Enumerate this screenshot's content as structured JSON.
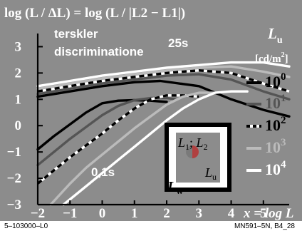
{
  "footer": {
    "left": "5–103000–L0",
    "right": "MN591–5N, B4_28"
  },
  "chart_data": {
    "type": "line",
    "title": "log (L / ΔL) = log (L / |L2 − L1|)",
    "annotation_lines": [
      "terskler",
      "discriminatione"
    ],
    "time_labels": [
      "25s",
      "0,1s"
    ],
    "x_axis_label": "x = log L",
    "xlim": [
      -2,
      5.8
    ],
    "ylim": [
      -3,
      3.5
    ],
    "x_ticks": [
      -2,
      -1,
      0,
      1,
      2,
      3,
      4,
      5
    ],
    "y_ticks": [
      -3,
      -2,
      -1,
      0,
      1,
      2,
      3
    ],
    "legend": {
      "title": "L",
      "title_sub": "u",
      "unit": "[cd/m",
      "unit_sup": "2",
      "unit_end": "]",
      "entries": [
        {
          "base": "10",
          "exp": "0",
          "color": "#000000",
          "dashed": false
        },
        {
          "base": "10",
          "exp": "1",
          "color": "#555555",
          "dashed": false
        },
        {
          "base": "10",
          "exp": "2",
          "color": "#000000",
          "dashed": true
        },
        {
          "base": "10",
          "exp": "3",
          "color": "#bbbbbb",
          "dashed": false
        },
        {
          "base": "10",
          "exp": "4",
          "color": "#ffffff",
          "dashed": false
        }
      ]
    },
    "inset": {
      "label_center": "L1; L2",
      "label_u": "Lu",
      "label_w": "Lw"
    },
    "series": [
      {
        "group": "25s",
        "color": "#000000",
        "dashed": false,
        "x": [
          -2,
          -1,
          0,
          1,
          1.8,
          3,
          4,
          5,
          5.8
        ],
        "y": [
          1.1,
          1.3,
          1.5,
          1.65,
          1.7,
          1.5,
          1.0,
          0.6,
          0.35
        ]
      },
      {
        "group": "25s",
        "color": "#555555",
        "dashed": false,
        "x": [
          -2,
          -1,
          0,
          1,
          2,
          3,
          4,
          5,
          5.8
        ],
        "y": [
          1.2,
          1.4,
          1.6,
          1.75,
          1.9,
          1.95,
          1.75,
          1.3,
          1.0
        ]
      },
      {
        "group": "25s",
        "color": "#000000",
        "dashed": true,
        "x": [
          -2,
          -1,
          0,
          1,
          2,
          3,
          4,
          5,
          5.8
        ],
        "y": [
          1.3,
          1.5,
          1.7,
          1.85,
          2.0,
          2.1,
          2.0,
          1.6,
          1.3
        ]
      },
      {
        "group": "25s",
        "color": "#bbbbbb",
        "dashed": false,
        "x": [
          -2,
          -1,
          0,
          1,
          2,
          3,
          4,
          5,
          5.8
        ],
        "y": [
          1.4,
          1.6,
          1.8,
          1.95,
          2.1,
          2.2,
          2.25,
          2.05,
          1.85
        ]
      },
      {
        "group": "25s",
        "color": "#ffffff",
        "dashed": false,
        "x": [
          -2,
          -1,
          0,
          1,
          2,
          3,
          4,
          5,
          5.8
        ],
        "y": [
          1.5,
          1.7,
          1.9,
          2.05,
          2.2,
          2.3,
          2.4,
          2.4,
          2.25
        ]
      },
      {
        "group": "0,1s",
        "color": "#000000",
        "dashed": false,
        "x": [
          -2,
          -1.5,
          -1,
          -0.5,
          0,
          0.5,
          1,
          1.5,
          2
        ],
        "y": [
          -0.9,
          -0.4,
          0.05,
          0.5,
          0.85,
          0.95,
          0.97,
          0.95,
          0.9
        ]
      },
      {
        "group": "0,1s",
        "color": "#555555",
        "dashed": false,
        "x": [
          -2,
          -1.5,
          -1,
          -0.5,
          0,
          0.5,
          1,
          1.5,
          2,
          2.3
        ],
        "y": [
          -1.5,
          -1.0,
          -0.5,
          -0.05,
          0.4,
          0.75,
          0.97,
          1.05,
          1.05,
          1.0
        ]
      },
      {
        "group": "0,1s",
        "color": "#000000",
        "dashed": true,
        "x": [
          -2,
          -1.5,
          -1,
          -0.5,
          0,
          0.5,
          1,
          1.5,
          2,
          2.5,
          3
        ],
        "y": [
          -2.2,
          -1.7,
          -1.2,
          -0.75,
          -0.3,
          0.2,
          0.65,
          1.0,
          1.15,
          1.15,
          1.1
        ]
      },
      {
        "group": "0,1s",
        "color": "#bbbbbb",
        "dashed": false,
        "x": [
          -1.6,
          -1,
          -0.5,
          0,
          0.5,
          1,
          1.5,
          2,
          2.5,
          3,
          3.5
        ],
        "y": [
          -3.0,
          -2.2,
          -1.6,
          -1.1,
          -0.6,
          -0.1,
          0.35,
          0.8,
          1.1,
          1.25,
          1.25
        ]
      },
      {
        "group": "0,1s",
        "color": "#ffffff",
        "dashed": false,
        "x": [
          -1.2,
          -0.5,
          0,
          0.5,
          1,
          1.5,
          2,
          2.5,
          3,
          3.5,
          4,
          4.5
        ],
        "y": [
          -3.0,
          -2.3,
          -1.8,
          -1.3,
          -0.8,
          -0.3,
          0.2,
          0.65,
          1.0,
          1.25,
          1.3,
          1.3
        ]
      }
    ]
  }
}
